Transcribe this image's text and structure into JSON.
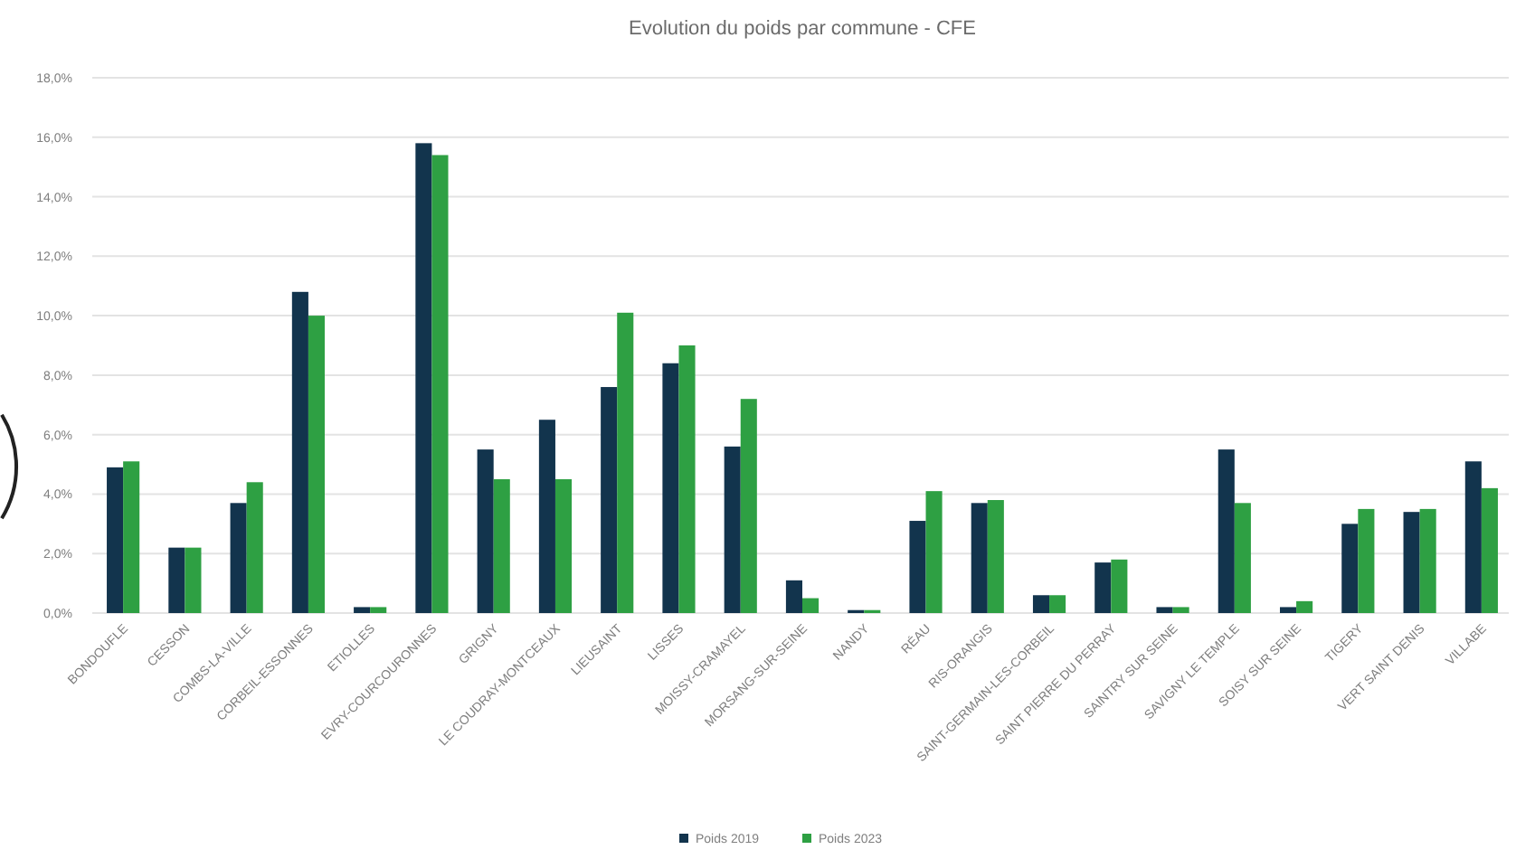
{
  "chart_data": {
    "type": "bar",
    "title": "Evolution du poids par commune - CFE",
    "categories": [
      "BONDOUFLE",
      "CESSON",
      "COMBS-LA-VILLE",
      "CORBEIL-ESSONNES",
      "ETIOLLES",
      "EVRY-COURCOURONNES",
      "GRIGNY",
      "LE COUDRAY-MONTCEAUX",
      "LIEUSAINT",
      "LISSES",
      "MOISSY-CRAMAYEL",
      "MORSANG-SUR-SEINE",
      "NANDY",
      "RÉAU",
      "RIS-ORANGIS",
      "SAINT-GERMAIN-LES-CORBEIL",
      "SAINT PIERRE DU PERRAY",
      "SAINTRY SUR SEINE",
      "SAVIGNY LE TEMPLE",
      "SOISY SUR SEINE",
      "TIGERY",
      "VERT SAINT DENIS",
      "VILLABE"
    ],
    "series": [
      {
        "name": "Poids 2019",
        "color": "#12344d",
        "values": [
          4.9,
          2.2,
          3.7,
          10.8,
          0.2,
          15.8,
          5.5,
          6.5,
          7.6,
          8.4,
          5.6,
          1.1,
          0.1,
          3.1,
          3.7,
          0.6,
          1.7,
          0.2,
          5.5,
          0.2,
          3.0,
          3.4,
          5.1
        ]
      },
      {
        "name": "Poids 2023",
        "color": "#2ea043",
        "values": [
          5.1,
          2.2,
          4.4,
          10.0,
          0.2,
          15.4,
          4.5,
          4.5,
          10.1,
          9.0,
          7.2,
          0.5,
          0.1,
          4.1,
          3.8,
          0.6,
          1.8,
          0.2,
          3.7,
          0.4,
          3.5,
          3.5,
          4.2
        ]
      }
    ],
    "ylim": [
      0,
      18
    ],
    "yticks": [
      {
        "value": 0,
        "label": "0,0%"
      },
      {
        "value": 2,
        "label": "2,0%"
      },
      {
        "value": 4,
        "label": "4,0%"
      },
      {
        "value": 6,
        "label": "6,0%"
      },
      {
        "value": 8,
        "label": "8,0%"
      },
      {
        "value": 10,
        "label": "10,0%"
      },
      {
        "value": 12,
        "label": "12,0%"
      },
      {
        "value": 14,
        "label": "14,0%"
      },
      {
        "value": 16,
        "label": "16,0%"
      },
      {
        "value": 18,
        "label": "18,0%"
      }
    ],
    "grid": "y",
    "legend": "bottom"
  }
}
